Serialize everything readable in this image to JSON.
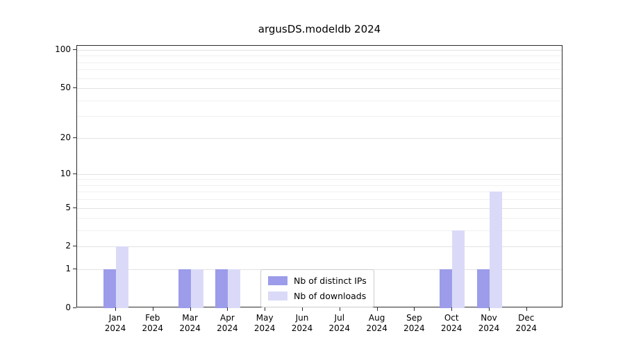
{
  "title": "argusDS.modeldb 2024",
  "chart_data": {
    "type": "bar",
    "title": "argusDS.modeldb 2024",
    "categories": [
      "Jan 2024",
      "Feb 2024",
      "Mar 2024",
      "Apr 2024",
      "May 2024",
      "Jun 2024",
      "Jul 2024",
      "Aug 2024",
      "Sep 2024",
      "Oct 2024",
      "Nov 2024",
      "Dec 2024"
    ],
    "series": [
      {
        "name": "Nb of distinct IPs",
        "color": "#9c9cea",
        "values": [
          1,
          0,
          1,
          1,
          0,
          0,
          0,
          0,
          0,
          1,
          1,
          0
        ]
      },
      {
        "name": "Nb of downloads",
        "color": "#dadaf8",
        "values": [
          2,
          0,
          1,
          1,
          0,
          0,
          0,
          0,
          0,
          3,
          7,
          0
        ]
      }
    ],
    "xlabel": "",
    "ylabel": "",
    "yscale": "log1p",
    "yticks": [
      0,
      1,
      2,
      5,
      10,
      20,
      50,
      100
    ],
    "minor_yticks": [
      3,
      4,
      6,
      7,
      8,
      9,
      30,
      40,
      60,
      70,
      80,
      90
    ],
    "ylim": [
      0,
      108
    ],
    "grid": "horizontal",
    "legend_position": "lower center"
  },
  "colors": {
    "frame": "#2b2b2b",
    "grid_major": "#e2e2e2",
    "grid_minor": "#f0f0f0",
    "background": "#ffffff"
  }
}
